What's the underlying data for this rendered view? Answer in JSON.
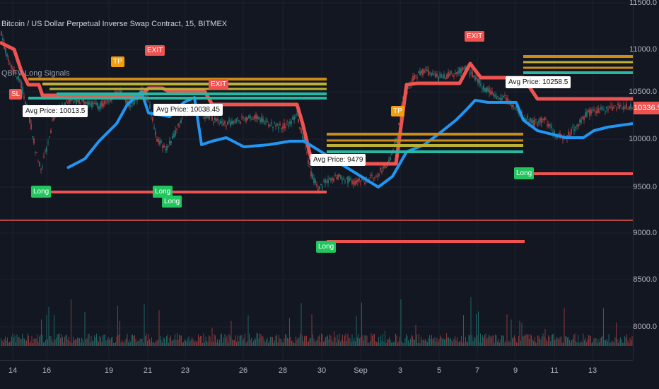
{
  "header": {
    "title": "Bitcoin / US Dollar Perpetual Inverse Swap Contract, 15, BITMEX",
    "indicator": "QBFV Long Signals"
  },
  "price_axis": {
    "labels": [
      "11500.0",
      "11000.0",
      "10500.0",
      "10000.0",
      "9500.0",
      "9000.0",
      "8500.0",
      "8000.0"
    ],
    "current_price": "10336.5"
  },
  "time_axis": {
    "labels": [
      "14",
      "16",
      "19",
      "21",
      "23",
      "26",
      "28",
      "30",
      "Sep",
      "3",
      "5",
      "7",
      "9",
      "11",
      "13"
    ]
  },
  "annotations": {
    "exit_label": "EXIT",
    "tp_label": "TP",
    "sl_label": "SL",
    "long_label": "Long",
    "avg_prices": [
      "Avg Price: 10013.5",
      "Avg Price: 10038.45",
      "Avg Price: 9479",
      "Avg Price: 10258.5"
    ]
  },
  "colors": {
    "background": "#131722",
    "bull": "#26a69a",
    "bear": "#ef5350",
    "support": "#2196f3",
    "resistance": "#ef5350",
    "tp1": "#cc8a16",
    "tp2": "#bdb135",
    "tp3": "#26b9a0",
    "long_signal": "#22c55e",
    "exit_signal": "#ef5350"
  }
}
